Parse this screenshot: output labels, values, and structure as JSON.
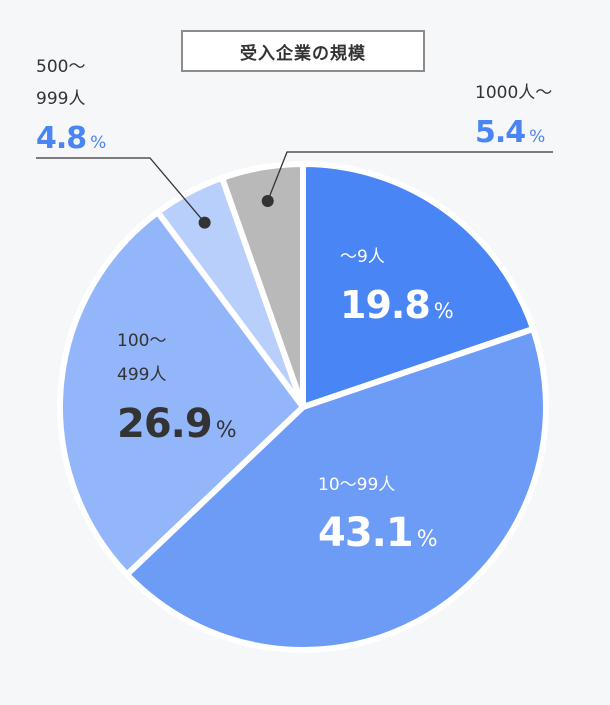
{
  "chart_data": {
    "type": "pie",
    "title": "受入企業の規模",
    "unit": "%",
    "slices": [
      {
        "label": "〜9人",
        "label_lines": [
          "〜9人"
        ],
        "value": 19.8,
        "value_text": "19.8",
        "color": "#4a85f5"
      },
      {
        "label": "10〜99人",
        "label_lines": [
          "10〜99人"
        ],
        "value": 43.1,
        "value_text": "43.1",
        "color": "#6d9cf7"
      },
      {
        "label": "100〜499人",
        "label_lines": [
          "100〜",
          "499人"
        ],
        "value": 26.9,
        "value_text": "26.9",
        "color": "#93b5fa"
      },
      {
        "label": "500〜999人",
        "label_lines": [
          "500〜",
          "999人"
        ],
        "value": 4.8,
        "value_text": "4.8",
        "color": "#b9cffb"
      },
      {
        "label": "1000人〜",
        "label_lines": [
          "1000人〜"
        ],
        "value": 5.4,
        "value_text": "5.4",
        "color": "#b9b9b9"
      }
    ]
  },
  "colors": {
    "accent": "#4a85f5",
    "label_light": "#ffffff",
    "label_dark": "#333333",
    "leader": "#333333"
  }
}
